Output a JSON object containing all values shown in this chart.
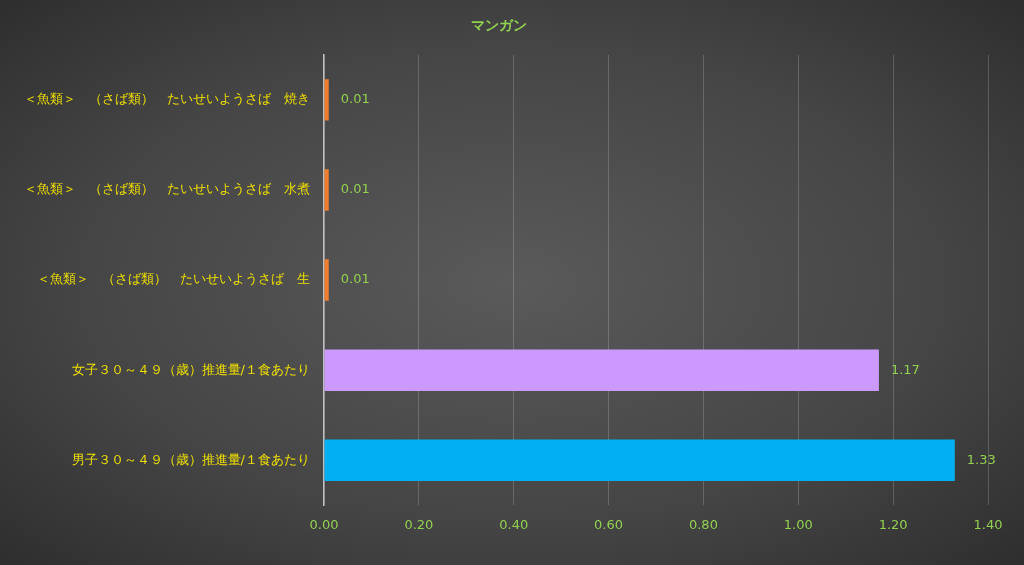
{
  "chart_data": {
    "type": "bar",
    "orientation": "horizontal",
    "title": "マンガン",
    "categories": [
      "＜魚類＞　（さば類）　たいせいようさば　焼き",
      "＜魚類＞　（さば類）　たいせいようさば　水煮",
      "＜魚類＞　（さば類）　たいせいようさば　生",
      "女子３０～４９（歳）推進量/１食あたり",
      "男子３０～４９（歳）推進量/１食あたり"
    ],
    "values": [
      0.01,
      0.01,
      0.01,
      1.17,
      1.33
    ],
    "colors": [
      "#ed7d31",
      "#ed7d31",
      "#ed7d31",
      "#cc99ff",
      "#00b0f0"
    ],
    "xlim": [
      0,
      1.4
    ],
    "xticks": [
      {
        "value": 0,
        "label": "0.00"
      },
      {
        "value": 0.2,
        "label": "0.20"
      },
      {
        "value": 0.4,
        "label": "0.40"
      },
      {
        "value": 0.6,
        "label": "0.60"
      },
      {
        "value": 0.8,
        "label": "0.80"
      },
      {
        "value": 1,
        "label": "1.00"
      },
      {
        "value": 1.2,
        "label": "1.20"
      },
      {
        "value": 1.4,
        "label": "1.40"
      }
    ],
    "grid": "x",
    "legend": false,
    "data_labels": true
  }
}
